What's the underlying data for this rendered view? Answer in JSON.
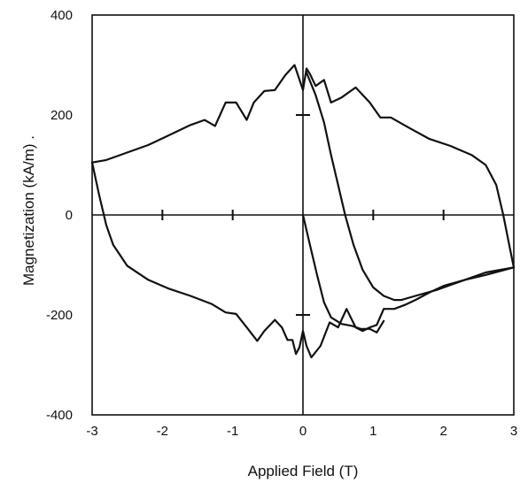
{
  "chart_data": {
    "type": "line",
    "title": "",
    "xlabel": "Applied Field (T)",
    "ylabel": "Magnetization (kA/m) .",
    "xlim": [
      -3,
      3
    ],
    "ylim": [
      -400,
      400
    ],
    "x_ticks": [
      -3,
      -2,
      -1,
      0,
      1,
      2,
      3
    ],
    "y_ticks": [
      -400,
      -200,
      0,
      200,
      400
    ],
    "x_tick_labels": [
      "-3",
      "-2",
      "-1",
      "0",
      "1",
      "2",
      "3"
    ],
    "y_tick_labels": [
      "-400",
      "-200",
      "0",
      "200",
      "400"
    ],
    "grid": false,
    "legend": "none",
    "line_color": "#111111",
    "series": [
      {
        "values": [
          [
            -3.0,
            105
          ],
          [
            -2.8,
            110
          ],
          [
            -2.5,
            125
          ],
          [
            -2.2,
            140
          ],
          [
            -1.9,
            160
          ],
          [
            -1.6,
            180
          ],
          [
            -1.4,
            190
          ],
          [
            -1.25,
            178
          ],
          [
            -1.1,
            225
          ],
          [
            -0.95,
            225
          ],
          [
            -0.8,
            190
          ],
          [
            -0.7,
            225
          ],
          [
            -0.55,
            248
          ],
          [
            -0.4,
            250
          ],
          [
            -0.25,
            280
          ],
          [
            -0.12,
            300
          ],
          [
            0.0,
            250
          ],
          [
            0.05,
            293
          ],
          [
            0.1,
            282
          ],
          [
            0.18,
            258
          ],
          [
            0.3,
            270
          ],
          [
            0.4,
            225
          ],
          [
            0.55,
            235
          ],
          [
            0.75,
            255
          ],
          [
            0.95,
            225
          ],
          [
            1.1,
            195
          ],
          [
            1.25,
            195
          ],
          [
            1.5,
            175
          ],
          [
            1.8,
            152
          ],
          [
            2.1,
            138
          ],
          [
            2.4,
            120
          ],
          [
            2.6,
            100
          ],
          [
            2.75,
            60
          ],
          [
            2.85,
            0
          ],
          [
            2.95,
            -70
          ],
          [
            3.0,
            -105
          ]
        ]
      },
      {
        "values": [
          [
            3.0,
            -105
          ],
          [
            2.6,
            -115
          ],
          [
            2.2,
            -135
          ],
          [
            1.9,
            -150
          ],
          [
            1.6,
            -162
          ],
          [
            1.4,
            -170
          ],
          [
            1.3,
            -170
          ],
          [
            1.15,
            -162
          ],
          [
            1.0,
            -145
          ],
          [
            0.85,
            -110
          ],
          [
            0.72,
            -60
          ],
          [
            0.6,
            0
          ],
          [
            0.5,
            60
          ],
          [
            0.4,
            120
          ],
          [
            0.3,
            185
          ],
          [
            0.18,
            240
          ],
          [
            0.05,
            285
          ]
        ]
      },
      {
        "values": [
          [
            3.0,
            -105
          ],
          [
            2.6,
            -120
          ],
          [
            2.3,
            -130
          ],
          [
            2.0,
            -142
          ],
          [
            1.8,
            -155
          ],
          [
            1.6,
            -170
          ],
          [
            1.45,
            -180
          ],
          [
            1.3,
            -188
          ],
          [
            1.15,
            -188
          ],
          [
            1.05,
            -220
          ],
          [
            0.95,
            -225
          ],
          [
            0.85,
            -232
          ],
          [
            0.75,
            -225
          ],
          [
            0.62,
            -188
          ],
          [
            0.5,
            -225
          ],
          [
            0.38,
            -215
          ],
          [
            0.25,
            -262
          ],
          [
            0.12,
            -285
          ],
          [
            0.05,
            -262
          ],
          [
            0.0,
            -232
          ],
          [
            -0.05,
            -265
          ],
          [
            -0.1,
            -278
          ],
          [
            -0.15,
            -250
          ],
          [
            -0.22,
            -250
          ],
          [
            -0.3,
            -225
          ],
          [
            -0.4,
            -210
          ],
          [
            -0.55,
            -232
          ],
          [
            -0.65,
            -252
          ],
          [
            -0.8,
            -225
          ],
          [
            -0.95,
            -198
          ],
          [
            -1.1,
            -195
          ],
          [
            -1.3,
            -178
          ],
          [
            -1.6,
            -162
          ],
          [
            -1.9,
            -148
          ],
          [
            -2.2,
            -130
          ],
          [
            -2.5,
            -102
          ],
          [
            -2.7,
            -60
          ],
          [
            -2.8,
            -20
          ],
          [
            -2.9,
            40
          ],
          [
            -3.0,
            105
          ]
        ]
      },
      {
        "values": [
          [
            0.0,
            0
          ],
          [
            0.1,
            -60
          ],
          [
            0.2,
            -120
          ],
          [
            0.3,
            -175
          ],
          [
            0.4,
            -205
          ],
          [
            0.55,
            -218
          ],
          [
            0.7,
            -222
          ],
          [
            0.82,
            -228
          ],
          [
            0.95,
            -228
          ],
          [
            1.05,
            -235
          ],
          [
            1.15,
            -212
          ]
        ]
      }
    ]
  }
}
